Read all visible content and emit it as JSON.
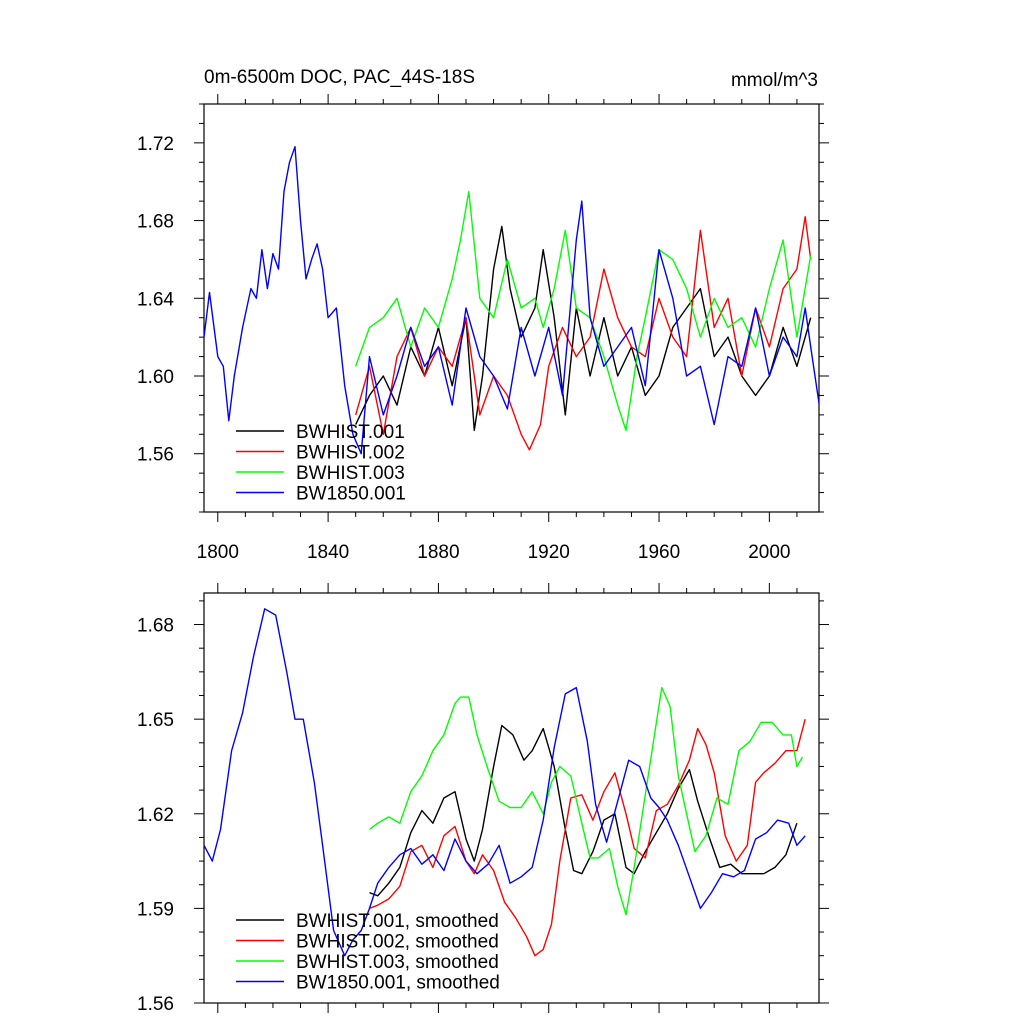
{
  "chart_data": [
    {
      "type": "line",
      "title": "0m-6500m DOC, PAC_44S-18S",
      "units": "mmol/m^3",
      "xlim": [
        1795,
        2018
      ],
      "ylim": [
        1.53,
        1.74
      ],
      "xticks": [
        1800,
        1840,
        1880,
        1920,
        1960,
        2000
      ],
      "xtick_labels": [
        "1800",
        "1840",
        "1880",
        "1920",
        "1960",
        "2000"
      ],
      "yticks": [
        1.56,
        1.6,
        1.64,
        1.68,
        1.72
      ],
      "ytick_labels": [
        "1.56",
        "1.60",
        "1.64",
        "1.68",
        "1.72"
      ],
      "legend": [
        "BWHIST.001",
        "BWHIST.002",
        "BWHIST.003",
        "BW1850.001"
      ],
      "legend_placement": "bottom-left",
      "series": [
        {
          "name": "BWHIST.001",
          "color": "#000000",
          "x": [
            1850,
            1855,
            1860,
            1865,
            1870,
            1875,
            1880,
            1885,
            1890,
            1893,
            1896,
            1900,
            1903,
            1906,
            1910,
            1915,
            1918,
            1922,
            1926,
            1930,
            1935,
            1940,
            1945,
            1950,
            1955,
            1960,
            1965,
            1970,
            1975,
            1980,
            1985,
            1990,
            1995,
            2000,
            2005,
            2010,
            2015
          ],
          "y": [
            1.575,
            1.59,
            1.6,
            1.585,
            1.615,
            1.6,
            1.625,
            1.595,
            1.63,
            1.572,
            1.6,
            1.655,
            1.677,
            1.645,
            1.62,
            1.635,
            1.665,
            1.63,
            1.58,
            1.635,
            1.6,
            1.63,
            1.6,
            1.615,
            1.59,
            1.6,
            1.625,
            1.635,
            1.645,
            1.61,
            1.62,
            1.6,
            1.59,
            1.6,
            1.625,
            1.605,
            1.63
          ]
        },
        {
          "name": "BWHIST.002",
          "color": "#ff0000",
          "x": [
            1850,
            1855,
            1860,
            1865,
            1870,
            1875,
            1880,
            1885,
            1890,
            1895,
            1900,
            1905,
            1910,
            1913,
            1917,
            1920,
            1925,
            1930,
            1935,
            1940,
            1945,
            1950,
            1955,
            1960,
            1965,
            1970,
            1975,
            1980,
            1985,
            1990,
            1995,
            2000,
            2005,
            2010,
            2013,
            2015
          ],
          "y": [
            1.58,
            1.605,
            1.57,
            1.61,
            1.625,
            1.6,
            1.615,
            1.605,
            1.63,
            1.58,
            1.6,
            1.59,
            1.57,
            1.562,
            1.575,
            1.605,
            1.625,
            1.61,
            1.62,
            1.655,
            1.63,
            1.615,
            1.61,
            1.64,
            1.62,
            1.61,
            1.675,
            1.625,
            1.64,
            1.6,
            1.635,
            1.615,
            1.645,
            1.655,
            1.682,
            1.66
          ]
        },
        {
          "name": "BWHIST.003",
          "color": "#00ff00",
          "x": [
            1850,
            1855,
            1860,
            1865,
            1870,
            1875,
            1880,
            1885,
            1888,
            1891,
            1895,
            1900,
            1905,
            1910,
            1915,
            1918,
            1922,
            1926,
            1930,
            1935,
            1940,
            1945,
            1948,
            1952,
            1955,
            1960,
            1965,
            1970,
            1975,
            1980,
            1985,
            1990,
            1995,
            2000,
            2005,
            2010,
            2015
          ],
          "y": [
            1.605,
            1.625,
            1.63,
            1.64,
            1.615,
            1.635,
            1.625,
            1.65,
            1.67,
            1.695,
            1.64,
            1.63,
            1.66,
            1.635,
            1.64,
            1.625,
            1.645,
            1.675,
            1.635,
            1.63,
            1.61,
            1.585,
            1.572,
            1.61,
            1.63,
            1.665,
            1.66,
            1.645,
            1.62,
            1.64,
            1.625,
            1.63,
            1.615,
            1.645,
            1.67,
            1.62,
            1.662
          ]
        },
        {
          "name": "BW1850.001",
          "color": "#0000ff",
          "x": [
            1795,
            1797,
            1800,
            1802,
            1804,
            1806,
            1809,
            1812,
            1814,
            1816,
            1818,
            1820,
            1822,
            1824,
            1826,
            1828,
            1830,
            1832,
            1834,
            1836,
            1838,
            1840,
            1843,
            1846,
            1849,
            1852,
            1855,
            1860,
            1865,
            1870,
            1875,
            1880,
            1885,
            1890,
            1895,
            1900,
            1905,
            1910,
            1915,
            1920,
            1925,
            1930,
            1932,
            1935,
            1940,
            1945,
            1950,
            1955,
            1960,
            1965,
            1970,
            1975,
            1980,
            1985,
            1990,
            1995,
            2000,
            2005,
            2010,
            2013,
            2015,
            2018
          ],
          "y": [
            1.62,
            1.643,
            1.61,
            1.605,
            1.577,
            1.6,
            1.625,
            1.645,
            1.64,
            1.665,
            1.645,
            1.663,
            1.655,
            1.695,
            1.71,
            1.718,
            1.68,
            1.65,
            1.66,
            1.668,
            1.655,
            1.63,
            1.635,
            1.595,
            1.57,
            1.56,
            1.61,
            1.58,
            1.6,
            1.625,
            1.605,
            1.615,
            1.585,
            1.635,
            1.61,
            1.6,
            1.583,
            1.625,
            1.6,
            1.625,
            1.59,
            1.67,
            1.69,
            1.63,
            1.605,
            1.615,
            1.625,
            1.595,
            1.665,
            1.64,
            1.6,
            1.605,
            1.575,
            1.61,
            1.605,
            1.635,
            1.6,
            1.62,
            1.61,
            1.635,
            1.615,
            1.586
          ]
        }
      ]
    },
    {
      "type": "line",
      "title": "",
      "xlim": [
        1795,
        2018
      ],
      "ylim": [
        1.56,
        1.69
      ],
      "yticks": [
        1.56,
        1.59,
        1.62,
        1.65,
        1.68
      ],
      "ytick_labels": [
        "1.56",
        "1.59",
        "1.62",
        "1.65",
        "1.68"
      ],
      "legend": [
        "BWHIST.001, smoothed",
        "BWHIST.002, smoothed",
        "BWHIST.003, smoothed",
        "BW1850.001, smoothed"
      ],
      "legend_placement": "bottom-left",
      "series": [
        {
          "name": "BWHIST.001, smoothed",
          "color": "#000000",
          "x": [
            1855,
            1858,
            1862,
            1866,
            1870,
            1874,
            1878,
            1882,
            1886,
            1890,
            1893,
            1896,
            1900,
            1903,
            1907,
            1911,
            1914,
            1918,
            1922,
            1926,
            1929,
            1932,
            1936,
            1940,
            1944,
            1948,
            1951,
            1955,
            1959,
            1963,
            1967,
            1971,
            1974,
            1978,
            1982,
            1986,
            1990,
            1994,
            1998,
            2002,
            2006,
            2010
          ],
          "y": [
            1.595,
            1.594,
            1.598,
            1.603,
            1.614,
            1.621,
            1.617,
            1.625,
            1.627,
            1.612,
            1.605,
            1.615,
            1.635,
            1.648,
            1.645,
            1.637,
            1.64,
            1.647,
            1.635,
            1.615,
            1.602,
            1.601,
            1.608,
            1.618,
            1.62,
            1.603,
            1.601,
            1.608,
            1.614,
            1.62,
            1.628,
            1.634,
            1.624,
            1.613,
            1.603,
            1.604,
            1.601,
            1.601,
            1.601,
            1.603,
            1.607,
            1.617
          ]
        },
        {
          "name": "BWHIST.002, smoothed",
          "color": "#ff0000",
          "x": [
            1855,
            1858,
            1862,
            1866,
            1870,
            1874,
            1878,
            1882,
            1886,
            1890,
            1893,
            1896,
            1900,
            1904,
            1908,
            1912,
            1915,
            1918,
            1921,
            1924,
            1928,
            1932,
            1936,
            1940,
            1944,
            1948,
            1951,
            1955,
            1959,
            1963,
            1967,
            1971,
            1974,
            1977,
            1980,
            1984,
            1988,
            1992,
            1995,
            1998,
            2002,
            2006,
            2010,
            2013
          ],
          "y": [
            1.59,
            1.591,
            1.593,
            1.597,
            1.608,
            1.61,
            1.603,
            1.613,
            1.616,
            1.605,
            1.601,
            1.607,
            1.602,
            1.592,
            1.587,
            1.581,
            1.575,
            1.577,
            1.585,
            1.605,
            1.625,
            1.626,
            1.618,
            1.627,
            1.633,
            1.62,
            1.609,
            1.606,
            1.621,
            1.623,
            1.629,
            1.637,
            1.647,
            1.642,
            1.633,
            1.613,
            1.605,
            1.61,
            1.63,
            1.633,
            1.636,
            1.64,
            1.64,
            1.65
          ]
        },
        {
          "name": "BWHIST.003, smoothed",
          "color": "#00ff00",
          "x": [
            1855,
            1858,
            1862,
            1866,
            1870,
            1874,
            1878,
            1882,
            1886,
            1888,
            1891,
            1894,
            1898,
            1902,
            1906,
            1910,
            1914,
            1918,
            1921,
            1924,
            1928,
            1932,
            1935,
            1938,
            1942,
            1945,
            1948,
            1951,
            1955,
            1958,
            1961,
            1964,
            1967,
            1970,
            1973,
            1977,
            1981,
            1985,
            1989,
            1993,
            1997,
            2001,
            2005,
            2008,
            2010,
            2012
          ],
          "y": [
            1.615,
            1.617,
            1.619,
            1.617,
            1.627,
            1.632,
            1.64,
            1.645,
            1.655,
            1.657,
            1.657,
            1.645,
            1.634,
            1.624,
            1.622,
            1.622,
            1.627,
            1.62,
            1.63,
            1.635,
            1.632,
            1.617,
            1.606,
            1.606,
            1.609,
            1.597,
            1.588,
            1.603,
            1.626,
            1.643,
            1.66,
            1.654,
            1.632,
            1.62,
            1.608,
            1.613,
            1.625,
            1.623,
            1.64,
            1.643,
            1.649,
            1.649,
            1.645,
            1.645,
            1.635,
            1.638
          ]
        },
        {
          "name": "BW1850.001, smoothed",
          "color": "#0000ff",
          "x": [
            1795,
            1798,
            1801,
            1805,
            1809,
            1813,
            1817,
            1821,
            1825,
            1828,
            1831,
            1835,
            1838,
            1842,
            1846,
            1849,
            1852,
            1855,
            1858,
            1862,
            1866,
            1870,
            1874,
            1878,
            1882,
            1886,
            1890,
            1894,
            1898,
            1902,
            1906,
            1910,
            1914,
            1918,
            1922,
            1926,
            1930,
            1934,
            1937,
            1941,
            1945,
            1949,
            1953,
            1957,
            1960,
            1963,
            1967,
            1971,
            1975,
            1979,
            1983,
            1987,
            1991,
            1995,
            1999,
            2003,
            2007,
            2010,
            2013
          ],
          "y": [
            1.61,
            1.605,
            1.615,
            1.64,
            1.652,
            1.67,
            1.685,
            1.683,
            1.665,
            1.65,
            1.65,
            1.63,
            1.61,
            1.583,
            1.575,
            1.58,
            1.583,
            1.59,
            1.598,
            1.603,
            1.607,
            1.609,
            1.604,
            1.607,
            1.602,
            1.612,
            1.605,
            1.601,
            1.604,
            1.61,
            1.598,
            1.6,
            1.603,
            1.618,
            1.641,
            1.658,
            1.66,
            1.643,
            1.623,
            1.611,
            1.624,
            1.637,
            1.635,
            1.625,
            1.622,
            1.618,
            1.61,
            1.6,
            1.59,
            1.595,
            1.601,
            1.6,
            1.602,
            1.612,
            1.614,
            1.618,
            1.617,
            1.61,
            1.613
          ]
        }
      ]
    }
  ]
}
